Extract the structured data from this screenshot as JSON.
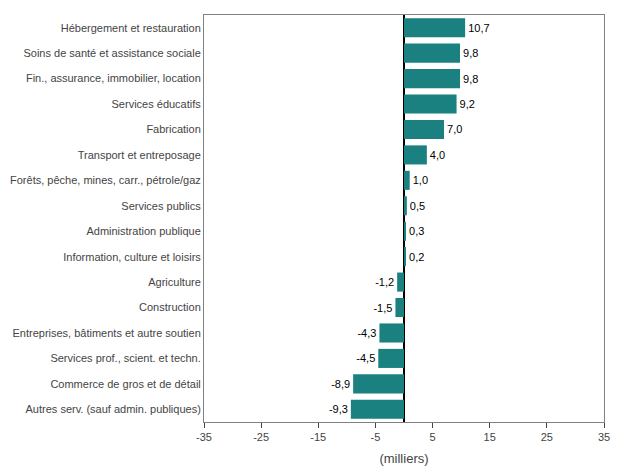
{
  "chart_data": {
    "type": "bar",
    "orientation": "horizontal",
    "categories": [
      "Autres serv. (sauf admin. publiques)",
      "Commerce de gros et de détail",
      "Services prof., scient. et techn.",
      "Entreprises, bâtiments et autre soutien",
      "Construction",
      "Agriculture",
      "Information, culture et loisirs",
      "Administration publique",
      "Services publics",
      "Forêts, pêche, mines, carr., pétrole/gaz",
      "Transport et entreposage",
      "Fabrication",
      "Services éducatifs",
      "Fin., assurance, immobilier, location",
      "Soins de santé et assistance sociale",
      "Hébergement et restauration"
    ],
    "values": [
      -9.3,
      -8.9,
      -4.5,
      -4.3,
      -1.5,
      -1.2,
      0.2,
      0.3,
      0.5,
      1.0,
      4.0,
      7.0,
      9.2,
      9.8,
      9.8,
      10.7
    ],
    "value_labels": [
      "-9,3",
      "-8,9",
      "-4,5",
      "-4,3",
      "-1,5",
      "-1,2",
      "0,2",
      "0,3",
      "0,5",
      "1,0",
      "4,0",
      "7,0",
      "9,2",
      "9,8",
      "9,8",
      "10,7"
    ],
    "data_labels": true,
    "color": "#1a8080",
    "xlabel": "(milliers)",
    "xlim": [
      -35,
      35
    ],
    "xticks": [
      -35,
      -25,
      -15,
      -5,
      5,
      15,
      25,
      35
    ],
    "grid": false
  }
}
